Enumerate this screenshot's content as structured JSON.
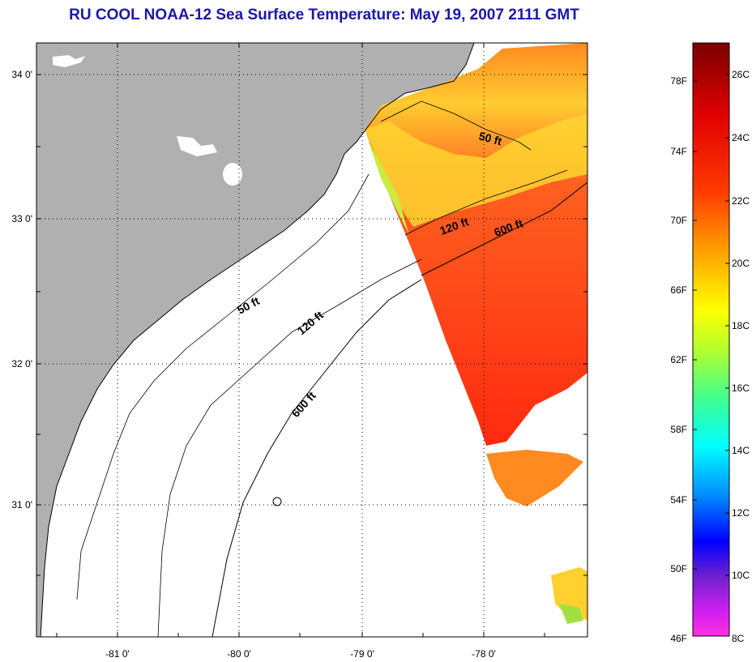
{
  "title": "RU COOL  NOAA-12  Sea Surface Temperature:  May 19, 2007 2111 GMT",
  "map": {
    "longitude_labels": [
      "-81 0'",
      "-80 0'",
      "-79 0'",
      "-78 0'"
    ],
    "latitude_labels": [
      "34 0'",
      "33 0'",
      "32 0'",
      "31 0'"
    ],
    "contour_labels": [
      "50 ft",
      "120 ft",
      "600 ft",
      "50 ft",
      "120 ft",
      "600 ft"
    ],
    "colors": {
      "land": "#b0b0b0",
      "cloud_or_nodata": "#ffffff",
      "coastline": "#000000"
    }
  },
  "colorbar": {
    "fahrenheit_labels": [
      "78F",
      "74F",
      "70F",
      "66F",
      "62F",
      "58F",
      "54F",
      "50F",
      "46F"
    ],
    "celsius_labels": [
      "26C",
      "24C",
      "22C",
      "20C",
      "18C",
      "16C",
      "14C",
      "12C",
      "10C",
      "8C"
    ],
    "gradient_colors": [
      "#7a0000",
      "#e00000",
      "#ff3000",
      "#ff8000",
      "#ffc000",
      "#ffff00",
      "#c0ff20",
      "#40ff80",
      "#00ffff",
      "#0080ff",
      "#0000ff",
      "#8000c0",
      "#ff20ff"
    ]
  }
}
